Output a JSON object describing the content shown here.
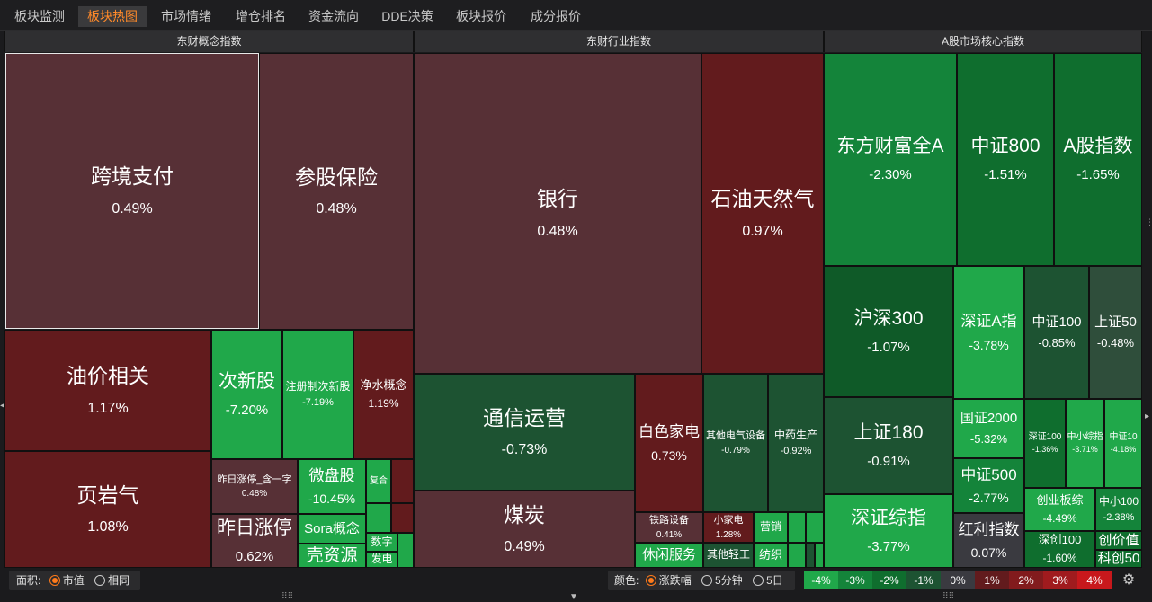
{
  "tabs": [
    "板块监测",
    "板块热图",
    "市场情绪",
    "增仓排名",
    "资金流向",
    "DDE决策",
    "板块报价",
    "成分报价"
  ],
  "active_tab": "板块热图",
  "panels": [
    "东财概念指数",
    "东财行业指数",
    "A股市场核心指数"
  ],
  "concept_tiles": [
    {
      "name": "跨境支付",
      "value": "0.49%",
      "color": "#573036"
    },
    {
      "name": "参股保险",
      "value": "0.48%",
      "color": "#573036"
    },
    {
      "name": "油价相关",
      "value": "1.17%",
      "color": "#621b1d"
    },
    {
      "name": "页岩气",
      "value": "1.08%",
      "color": "#621b1d"
    },
    {
      "name": "次新股",
      "value": "-7.20%",
      "color": "#20a84a"
    },
    {
      "name": "注册制次新股",
      "value": "-7.19%",
      "color": "#20a84a"
    },
    {
      "name": "净水概念",
      "value": "1.19%",
      "color": "#621b1d"
    },
    {
      "name": "昨日涨停_含一字",
      "value": "0.48%",
      "color": "#573036"
    },
    {
      "name": "微盘股",
      "value": "-10.45%",
      "color": "#20a84a"
    },
    {
      "name": "复合",
      "value": "",
      "color": "#20a84a"
    },
    {
      "name": "昨日涨停",
      "value": "0.62%",
      "color": "#573036"
    },
    {
      "name": "Sora概念",
      "value": "",
      "color": "#20a84a"
    },
    {
      "name": "壳资源",
      "value": "",
      "color": "#20a84a"
    },
    {
      "name": "数字",
      "value": "",
      "color": "#20a84a"
    },
    {
      "name": "发电",
      "value": "",
      "color": "#20a84a"
    }
  ],
  "industry_tiles": [
    {
      "name": "银行",
      "value": "0.48%",
      "color": "#573036"
    },
    {
      "name": "石油天然气",
      "value": "0.97%",
      "color": "#621b1d"
    },
    {
      "name": "通信运营",
      "value": "-0.73%",
      "color": "#1d5332"
    },
    {
      "name": "白色家电",
      "value": "0.73%",
      "color": "#621b1d"
    },
    {
      "name": "其他电气设备",
      "value": "-0.79%",
      "color": "#1d5332"
    },
    {
      "name": "中药生产",
      "value": "-0.92%",
      "color": "#1d5332"
    },
    {
      "name": "煤炭",
      "value": "0.49%",
      "color": "#573036"
    },
    {
      "name": "铁路设备",
      "value": "0.41%",
      "color": "#573036"
    },
    {
      "name": "小家电",
      "value": "1.28%",
      "color": "#621b1d"
    },
    {
      "name": "营销",
      "value": "",
      "color": "#20a84a"
    },
    {
      "name": "休闲服务",
      "value": "",
      "color": "#20a84a"
    },
    {
      "name": "其他轻工",
      "value": "",
      "color": "#1d5332"
    },
    {
      "name": "纺织",
      "value": "",
      "color": "#20a84a"
    }
  ],
  "core_tiles": [
    {
      "name": "东方财富全A",
      "value": "-2.30%",
      "color": "#14843a"
    },
    {
      "name": "中证800",
      "value": "-1.51%",
      "color": "#0f6e2e"
    },
    {
      "name": "A股指数",
      "value": "-1.65%",
      "color": "#0f6e2e"
    },
    {
      "name": "沪深300",
      "value": "-1.07%",
      "color": "#0f5a28"
    },
    {
      "name": "深证A指",
      "value": "-3.78%",
      "color": "#20a84a"
    },
    {
      "name": "中证100",
      "value": "-0.85%",
      "color": "#1d5332"
    },
    {
      "name": "上证50",
      "value": "-0.48%",
      "color": "#2f4e3b"
    },
    {
      "name": "上证180",
      "value": "-0.91%",
      "color": "#1d5332"
    },
    {
      "name": "国证2000",
      "value": "-5.32%",
      "color": "#20a84a"
    },
    {
      "name": "深证100",
      "value": "-1.36%",
      "color": "#0f6e2e"
    },
    {
      "name": "中小综指",
      "value": "-3.71%",
      "color": "#20a84a"
    },
    {
      "name": "中证10",
      "value": "-4.18%",
      "color": "#20a84a"
    },
    {
      "name": "中证500",
      "value": "-2.77%",
      "color": "#14843a"
    },
    {
      "name": "深证综指",
      "value": "-3.77%",
      "color": "#20a84a"
    },
    {
      "name": "创业板综",
      "value": "-4.49%",
      "color": "#20a84a"
    },
    {
      "name": "中小100",
      "value": "-2.38%",
      "color": "#14843a"
    },
    {
      "name": "红利指数",
      "value": "0.07%",
      "color": "#3a3a40"
    },
    {
      "name": "深创100",
      "value": "-1.60%",
      "color": "#0f6e2e"
    },
    {
      "name": "创价值",
      "value": "",
      "color": "#0f6e2e"
    },
    {
      "name": "科创50",
      "value": "",
      "color": "#0f6e2e"
    }
  ],
  "footer": {
    "area_label": "面积:",
    "area_options": [
      "市值",
      "相同"
    ],
    "area_selected": "市值",
    "color_label": "颜色:",
    "color_options": [
      "涨跌幅",
      "5分钟",
      "5日"
    ],
    "color_selected": "涨跌幅",
    "legend": [
      {
        "label": "-4%",
        "color": "#20a84a"
      },
      {
        "label": "-3%",
        "color": "#14843a"
      },
      {
        "label": "-2%",
        "color": "#0f6e2e"
      },
      {
        "label": "-1%",
        "color": "#1d5332"
      },
      {
        "label": "0%",
        "color": "#3a3a40"
      },
      {
        "label": "1%",
        "color": "#621b1d"
      },
      {
        "label": "2%",
        "color": "#821b1d"
      },
      {
        "label": "3%",
        "color": "#a01b1e"
      },
      {
        "label": "4%",
        "color": "#c8181c"
      }
    ]
  }
}
